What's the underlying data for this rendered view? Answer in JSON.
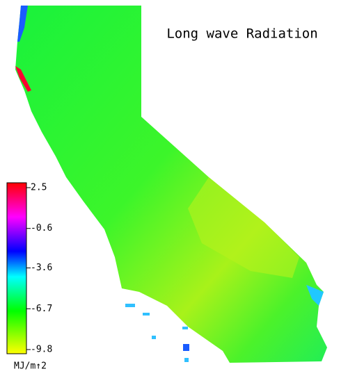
{
  "title": "Long wave Radiation",
  "colorbar": {
    "ticks": [
      2.5,
      -0.6,
      -3.6,
      -6.7,
      -9.8
    ],
    "unit": "MJ/m↑2"
  }
}
